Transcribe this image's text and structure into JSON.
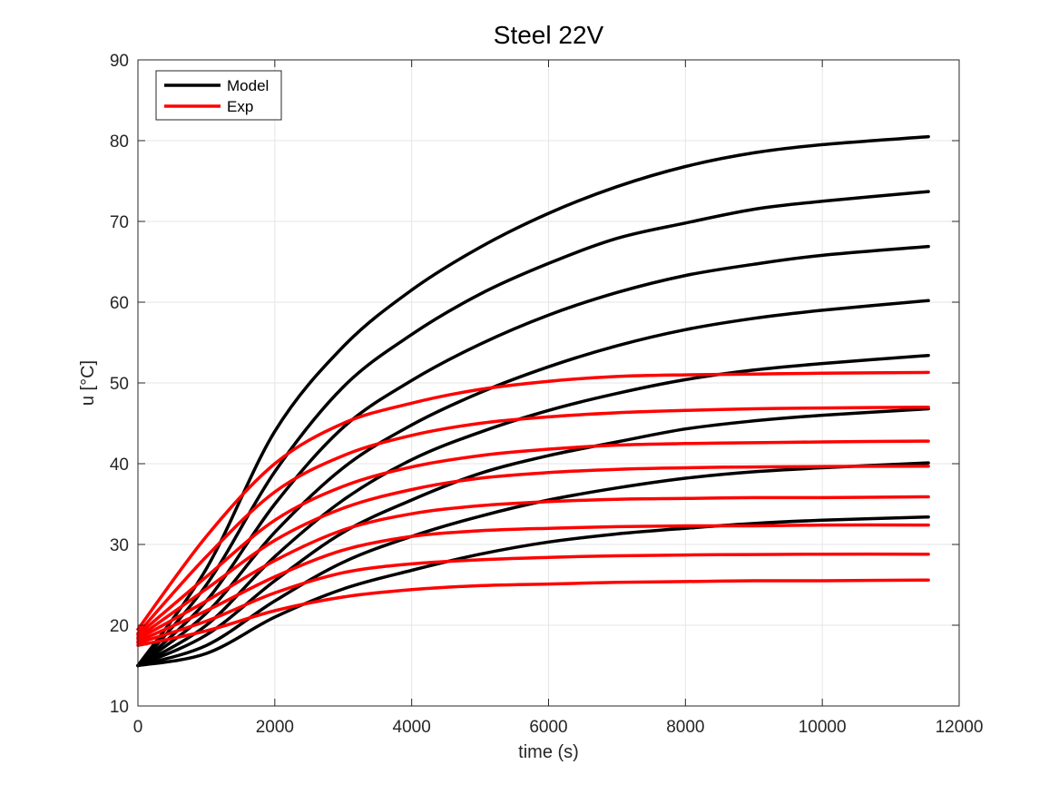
{
  "chart_data": {
    "type": "line",
    "title": "Steel 22V",
    "xlabel": "time (s)",
    "ylabel": "u [°C]",
    "xlim": [
      0,
      12000
    ],
    "ylim": [
      10,
      90
    ],
    "xticks": [
      0,
      2000,
      4000,
      6000,
      8000,
      10000,
      12000
    ],
    "yticks": [
      10,
      20,
      30,
      40,
      50,
      60,
      70,
      80,
      90
    ],
    "grid": true,
    "legend_location": "top-left",
    "legend": [
      {
        "label": "Model",
        "color": "#000000"
      },
      {
        "label": "Exp",
        "color": "#ff0000"
      }
    ],
    "series": [
      {
        "group": "Model",
        "color": "#000000",
        "x": [
          0,
          1000,
          2000,
          3000,
          4000,
          5000,
          6000,
          7000,
          8000,
          9000,
          10000,
          11550
        ],
        "values": [
          15.0,
          27.0,
          44.0,
          54.5,
          61.5,
          66.8,
          71.0,
          74.3,
          76.8,
          78.5,
          79.5,
          80.5
        ]
      },
      {
        "group": "Model",
        "color": "#000000",
        "x": [
          0,
          1000,
          2000,
          3000,
          4000,
          5000,
          6000,
          7000,
          8000,
          9000,
          10000,
          11550
        ],
        "values": [
          15.0,
          25.0,
          39.0,
          49.5,
          56.0,
          61.0,
          64.8,
          67.9,
          69.8,
          71.5,
          72.5,
          73.7
        ]
      },
      {
        "group": "Model",
        "color": "#000000",
        "x": [
          0,
          1000,
          2000,
          3000,
          4000,
          5000,
          6000,
          7000,
          8000,
          9000,
          10000,
          11550
        ],
        "values": [
          15.0,
          23.0,
          35.0,
          44.5,
          50.3,
          54.8,
          58.4,
          61.2,
          63.3,
          64.7,
          65.8,
          66.9
        ]
      },
      {
        "group": "Model",
        "color": "#000000",
        "x": [
          0,
          1000,
          2000,
          3000,
          4000,
          5000,
          6000,
          7000,
          8000,
          9000,
          10000,
          11550
        ],
        "values": [
          15.0,
          21.5,
          31.5,
          39.5,
          44.8,
          48.8,
          52.0,
          54.6,
          56.6,
          58.0,
          59.0,
          60.2
        ]
      },
      {
        "group": "Model",
        "color": "#000000",
        "x": [
          0,
          1000,
          2000,
          3000,
          4000,
          5000,
          6000,
          7000,
          8000,
          9000,
          10000,
          11550
        ],
        "values": [
          15.0,
          20.0,
          28.5,
          35.5,
          40.5,
          43.9,
          46.6,
          48.7,
          50.4,
          51.6,
          52.4,
          53.4
        ]
      },
      {
        "group": "Model",
        "color": "#000000",
        "x": [
          0,
          1000,
          2000,
          3000,
          4000,
          5000,
          6000,
          7000,
          8000,
          9000,
          10000,
          11550
        ],
        "values": [
          15.0,
          18.8,
          25.5,
          31.5,
          35.5,
          38.8,
          41.0,
          42.7,
          44.3,
          45.3,
          46.0,
          46.8
        ]
      },
      {
        "group": "Model",
        "color": "#000000",
        "x": [
          0,
          1000,
          2000,
          3000,
          4000,
          5000,
          6000,
          7000,
          8000,
          9000,
          10000,
          11550
        ],
        "values": [
          15.0,
          17.5,
          23.0,
          27.8,
          31.0,
          33.5,
          35.5,
          37.0,
          38.2,
          39.0,
          39.5,
          40.1
        ]
      },
      {
        "group": "Model",
        "color": "#000000",
        "x": [
          0,
          1000,
          2000,
          3000,
          4000,
          5000,
          6000,
          7000,
          8000,
          9000,
          10000,
          11550
        ],
        "values": [
          15.0,
          16.5,
          21.0,
          24.5,
          26.8,
          28.8,
          30.3,
          31.3,
          32.0,
          32.6,
          33.0,
          33.4
        ]
      },
      {
        "group": "Exp",
        "color": "#ff0000",
        "x": [
          0,
          1000,
          2000,
          3000,
          4000,
          5000,
          6000,
          7000,
          8000,
          9000,
          10000,
          11550
        ],
        "values": [
          19.5,
          31.0,
          40.0,
          45.0,
          47.5,
          49.2,
          50.2,
          50.8,
          51.0,
          51.1,
          51.2,
          51.3
        ]
      },
      {
        "group": "Exp",
        "color": "#ff0000",
        "x": [
          0,
          1000,
          2000,
          3000,
          4000,
          5000,
          6000,
          7000,
          8000,
          9000,
          10000,
          11550
        ],
        "values": [
          19.0,
          28.5,
          36.5,
          41.0,
          43.5,
          45.0,
          45.8,
          46.3,
          46.6,
          46.8,
          46.9,
          47.0
        ]
      },
      {
        "group": "Exp",
        "color": "#ff0000",
        "x": [
          0,
          1000,
          2000,
          3000,
          4000,
          5000,
          6000,
          7000,
          8000,
          9000,
          10000,
          11550
        ],
        "values": [
          18.8,
          26.0,
          33.0,
          37.2,
          39.6,
          41.0,
          41.8,
          42.3,
          42.5,
          42.6,
          42.7,
          42.8
        ]
      },
      {
        "group": "Exp",
        "color": "#ff0000",
        "x": [
          0,
          1000,
          2000,
          3000,
          4000,
          5000,
          6000,
          7000,
          8000,
          9000,
          10000,
          11550
        ],
        "values": [
          18.5,
          24.5,
          30.5,
          34.5,
          36.8,
          38.2,
          38.9,
          39.3,
          39.5,
          39.6,
          39.65,
          39.7
        ]
      },
      {
        "group": "Exp",
        "color": "#ff0000",
        "x": [
          0,
          1000,
          2000,
          3000,
          4000,
          5000,
          6000,
          7000,
          8000,
          9000,
          10000,
          11550
        ],
        "values": [
          18.3,
          23.0,
          28.0,
          31.8,
          33.8,
          34.8,
          35.3,
          35.6,
          35.7,
          35.8,
          35.8,
          35.9
        ]
      },
      {
        "group": "Exp",
        "color": "#ff0000",
        "x": [
          0,
          1000,
          2000,
          3000,
          4000,
          5000,
          6000,
          7000,
          8000,
          9000,
          10000,
          11550
        ],
        "values": [
          18.0,
          21.8,
          26.0,
          29.3,
          31.0,
          31.7,
          32.0,
          32.2,
          32.3,
          32.3,
          32.4,
          32.4
        ]
      },
      {
        "group": "Exp",
        "color": "#ff0000",
        "x": [
          0,
          1000,
          2000,
          3000,
          4000,
          5000,
          6000,
          7000,
          8000,
          9000,
          10000,
          11550
        ],
        "values": [
          17.8,
          20.5,
          24.0,
          26.5,
          27.6,
          28.1,
          28.4,
          28.6,
          28.7,
          28.75,
          28.8,
          28.8
        ]
      },
      {
        "group": "Exp",
        "color": "#ff0000",
        "x": [
          0,
          1000,
          2000,
          3000,
          4000,
          5000,
          6000,
          7000,
          8000,
          9000,
          10000,
          11550
        ],
        "values": [
          17.5,
          19.3,
          21.8,
          23.5,
          24.4,
          24.9,
          25.1,
          25.3,
          25.4,
          25.5,
          25.5,
          25.6
        ]
      }
    ]
  }
}
